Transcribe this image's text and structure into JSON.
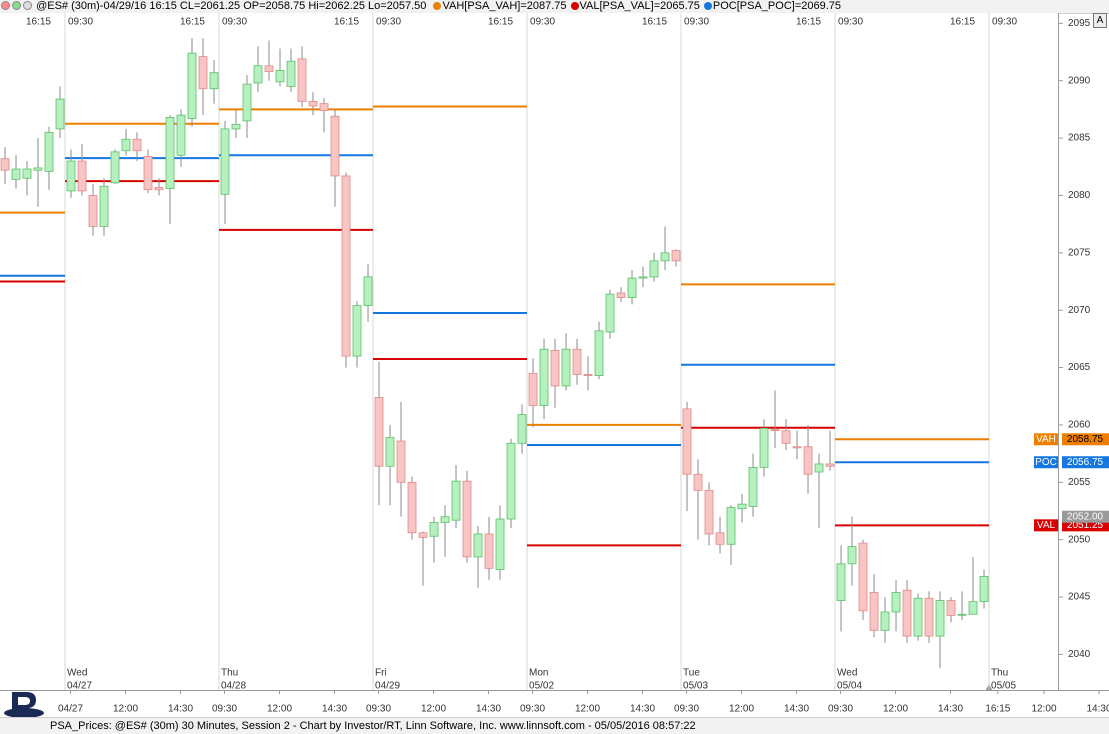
{
  "header": {
    "symbol": "@ES# (30m)-04/29/16 16:15 CL=2061.25 OP=2058.75 Hi=2062.25 Lo=2057.50",
    "studies": [
      "VAH[PSA_VAH]=2087.75",
      "VAL[PSA_VAL]=2065.75",
      "POC[PSA_POC]=2069.75"
    ],
    "button": "A"
  },
  "footer": "PSA_Prices: @ES# (30m) 30 Minutes, Session 2 - Chart by Investor/RT, Linn Software, Inc. www.linnsoft.com - 05/05/2016 08:57:22",
  "chart_data": {
    "type": "candlestick",
    "up_color": "#b6f0be",
    "up_edge": "#5bbf6b",
    "down_color": "#f8c4c4",
    "down_edge": "#e08a8a",
    "wick_color": "#8a8a8a",
    "xlim": [
      -0.41,
      95.77
    ],
    "ylim": [
      2036.9,
      2095.9
    ],
    "yticks": [
      2040,
      2045,
      2050,
      2055,
      2060,
      2065,
      2070,
      2075,
      2080,
      2085,
      2090,
      2095
    ],
    "open": [
      2083.2,
      2081.4,
      2081.5,
      2082.2,
      2082.1,
      2085.8,
      2080.4,
      2083,
      2080,
      2077.3,
      2081.1,
      2083.9,
      2084.9,
      2083.4,
      2080.7,
      2080.6,
      2083.5,
      2086.7,
      2092.1,
      2089.3,
      2080.1,
      2085.8,
      2086.5,
      2089.8,
      2091.3,
      2089.9,
      2089.5,
      2091.9,
      2088.2,
      2088,
      2086.9,
      2081.7,
      2066,
      2070.4,
      2062.4,
      2056.4,
      2058.6,
      2055,
      2050.6,
      2050.3,
      2051.5,
      2051.7,
      2055.1,
      2048.5,
      2050.5,
      2047.4,
      2051.8,
      2058.4,
      2064.5,
      2061.7,
      2066.5,
      2063.4,
      2066.6,
      2064.4,
      2064.3,
      2068.1,
      2071.5,
      2071.1,
      2072.8,
      2072.9,
      2074.3,
      2075.2,
      2061.4,
      2055.7,
      2054.3,
      2050.6,
      2049.6,
      2052.7,
      2052.9,
      2056.3,
      2059.6,
      2059.5,
      2058.1,
      2058.1,
      2055.9,
      2056.6,
      2044.7,
      2047.9,
      2049.7,
      2045.4,
      2042.1,
      2043.7,
      2045.6,
      2041.6,
      2044.9,
      2041.6,
      2044.7,
      2043.5,
      2043.5,
      2044.6
    ],
    "high": [
      2084.2,
      2083.5,
      2083,
      2085,
      2086,
      2089.5,
      2084,
      2084.5,
      2081,
      2081.5,
      2084,
      2085.8,
      2085.5,
      2084,
      2081.5,
      2087,
      2087.5,
      2093.7,
      2093.7,
      2091.8,
      2086.5,
      2087.5,
      2090.5,
      2093,
      2093.5,
      2092.8,
      2092.8,
      2093,
      2089,
      2088.5,
      2087.5,
      2082,
      2070.8,
      2074,
      2065.5,
      2060,
      2062,
      2055.5,
      2050.7,
      2052,
      2053,
      2056.5,
      2056,
      2051.2,
      2052,
      2053,
      2058.8,
      2061.8,
      2065.8,
      2067.5,
      2067.5,
      2068,
      2067.5,
      2066,
      2069,
      2071.8,
      2072,
      2073.5,
      2073.8,
      2075,
      2077.3,
      2075.3,
      2062,
      2057,
      2055,
      2052,
      2053,
      2054,
      2057.5,
      2060.5,
      2063,
      2060.5,
      2059.5,
      2060,
      2057.5,
      2059.5,
      2049.5,
      2052,
      2050,
      2047,
      2045,
      2046.5,
      2046.5,
      2045.3,
      2045.5,
      2045.5,
      2045,
      2045.5,
      2048.5,
      2047.4
    ],
    "low": [
      2081,
      2080.6,
      2080,
      2079,
      2080.5,
      2085,
      2079.8,
      2080,
      2076.5,
      2076.5,
      2081,
      2083.5,
      2083,
      2080.2,
      2080,
      2077.5,
      2082.5,
      2086,
      2087,
      2088,
      2077.5,
      2085,
      2085,
      2089,
      2090,
      2089.5,
      2089,
      2087.7,
      2087,
      2085.5,
      2079,
      2065,
      2065,
      2069,
      2053,
      2053,
      2052,
      2050,
      2046,
      2048,
      2048.5,
      2051,
      2048,
      2045.8,
      2046.5,
      2046.5,
      2051,
      2057.5,
      2059.8,
      2060.5,
      2061.5,
      2063,
      2063.5,
      2063,
      2064,
      2067.5,
      2070.7,
      2070.5,
      2072,
      2072.5,
      2073.5,
      2073.8,
      2052.5,
      2050,
      2049.5,
      2048.8,
      2047.8,
      2051.5,
      2052,
      2055.5,
      2058,
      2057.8,
      2057,
      2054,
      2051,
      2056,
      2042,
      2046,
      2043,
      2041.5,
      2041,
      2042,
      2041,
      2041.2,
      2041,
      2038.8,
      2042.8,
      2043,
      2043.5,
      2044
    ],
    "close": [
      2082.2,
      2082.3,
      2082.3,
      2082.4,
      2085.5,
      2088.4,
      2083,
      2080.4,
      2077.3,
      2080.8,
      2083.8,
      2084.9,
      2083.9,
      2080.5,
      2080.5,
      2086.8,
      2087,
      2092.4,
      2089.3,
      2090.7,
      2085.8,
      2086.2,
      2089.7,
      2091.3,
      2090.8,
      2090.9,
      2091.7,
      2088.2,
      2087.8,
      2087.4,
      2081.7,
      2066,
      2070.4,
      2072.9,
      2056.4,
      2058.9,
      2055,
      2050.6,
      2050.2,
      2051.5,
      2052,
      2055.1,
      2048.5,
      2050.5,
      2047.5,
      2051.8,
      2058.4,
      2060.9,
      2061.7,
      2066.6,
      2063.4,
      2066.6,
      2064.4,
      2064.3,
      2068.2,
      2071.4,
      2071.1,
      2072.8,
      2072.9,
      2074.3,
      2075,
      2074.3,
      2055.7,
      2054.3,
      2050.5,
      2049.6,
      2052.8,
      2053.1,
      2056.3,
      2059.7,
      2059.5,
      2058.4,
      2058,
      2055.7,
      2056.6,
      2056.4,
      2047.9,
      2049.4,
      2043.8,
      2042.1,
      2043.7,
      2045.4,
      2041.6,
      2044.9,
      2041.6,
      2044.7,
      2043.4,
      2043.5,
      2044.6,
      2046.8
    ],
    "levels": [
      {
        "name": "VAH",
        "color": "#ee7f00",
        "tag_text": "#000",
        "segments": [
          {
            "x": [
              -0.5,
              5.5
            ],
            "value": 2078.5
          },
          {
            "x": [
              5.5,
              19.5
            ],
            "value": 2086.25
          },
          {
            "x": [
              19.5,
              33.5
            ],
            "value": 2087.5
          },
          {
            "x": [
              33.5,
              47.5
            ],
            "value": 2087.75
          },
          {
            "x": [
              47.5,
              61.5
            ],
            "value": 2060
          },
          {
            "x": [
              61.5,
              75.5
            ],
            "value": 2072.25
          },
          {
            "x": [
              75.5,
              89.5
            ],
            "value": 2058.75
          }
        ]
      },
      {
        "name": "POC",
        "color": "#1577e0",
        "tag_text": "#fff",
        "segments": [
          {
            "x": [
              -0.5,
              5.5
            ],
            "value": 2073
          },
          {
            "x": [
              5.5,
              19.5
            ],
            "value": 2083.25
          },
          {
            "x": [
              19.5,
              33.5
            ],
            "value": 2083.5
          },
          {
            "x": [
              33.5,
              47.5
            ],
            "value": 2069.75
          },
          {
            "x": [
              47.5,
              61.5
            ],
            "value": 2058.25
          },
          {
            "x": [
              61.5,
              75.5
            ],
            "value": 2065.25
          },
          {
            "x": [
              75.5,
              89.5
            ],
            "value": 2056.75
          }
        ]
      },
      {
        "name": "VAL",
        "color": "#d80000",
        "tag_text": "#fff",
        "segments": [
          {
            "x": [
              -0.5,
              5.5
            ],
            "value": 2072.5
          },
          {
            "x": [
              5.5,
              19.5
            ],
            "value": 2081.25
          },
          {
            "x": [
              19.5,
              33.5
            ],
            "value": 2077
          },
          {
            "x": [
              33.5,
              47.5
            ],
            "value": 2065.75
          },
          {
            "x": [
              47.5,
              61.5
            ],
            "value": 2049.5
          },
          {
            "x": [
              61.5,
              75.5
            ],
            "value": 2059.75
          },
          {
            "x": [
              75.5,
              89.5
            ],
            "value": 2051.25
          }
        ]
      }
    ],
    "last_price": {
      "value": 2052,
      "label": "2052.00"
    },
    "sessions": [
      {
        "start": 5.5,
        "day": "Wed",
        "date": "04/27",
        "close_label": "16:15",
        "open_label": "09:30"
      },
      {
        "start": 19.5,
        "day": "Thu",
        "date": "04/28",
        "close_label": "16:15",
        "open_label": "09:30"
      },
      {
        "start": 33.5,
        "day": "Fri",
        "date": "04/29",
        "close_label": "16:15",
        "open_label": "09:30"
      },
      {
        "start": 47.5,
        "day": "Mon",
        "date": "05/02",
        "close_label": "16:15",
        "open_label": "09:30"
      },
      {
        "start": 61.5,
        "day": "Tue",
        "date": "05/03",
        "close_label": "16:15",
        "open_label": "09:30"
      },
      {
        "start": 75.5,
        "day": "Wed",
        "date": "05/04",
        "close_label": "16:15",
        "open_label": "09:30"
      },
      {
        "start": 89.5,
        "day": "Thu",
        "date": "05/05",
        "close_label": "16:15",
        "open_label": "09:30"
      }
    ],
    "xticks": [
      {
        "value": 6,
        "label": "04/27"
      },
      {
        "value": 11,
        "label": "12:00"
      },
      {
        "value": 16,
        "label": "14:30"
      },
      {
        "value": 20,
        "label": "09:30"
      },
      {
        "value": 25,
        "label": "12:00"
      },
      {
        "value": 30,
        "label": "14:30"
      },
      {
        "value": 34,
        "label": "09:30"
      },
      {
        "value": 39,
        "label": "12:00"
      },
      {
        "value": 44,
        "label": "14:30"
      },
      {
        "value": 48,
        "label": "09:30"
      },
      {
        "value": 53,
        "label": "12:00"
      },
      {
        "value": 58,
        "label": "14:30"
      },
      {
        "value": 62,
        "label": "09:30"
      },
      {
        "value": 67,
        "label": "12:00"
      },
      {
        "value": 72,
        "label": "14:30"
      },
      {
        "value": 76,
        "label": "09:30"
      },
      {
        "value": 81,
        "label": "12:00"
      },
      {
        "value": 86,
        "label": "14:30"
      },
      {
        "value": 90.3,
        "label": "16:15"
      },
      {
        "value": 94.5,
        "label": "12:00"
      },
      {
        "value": 99.5,
        "label": "14:30"
      }
    ]
  }
}
